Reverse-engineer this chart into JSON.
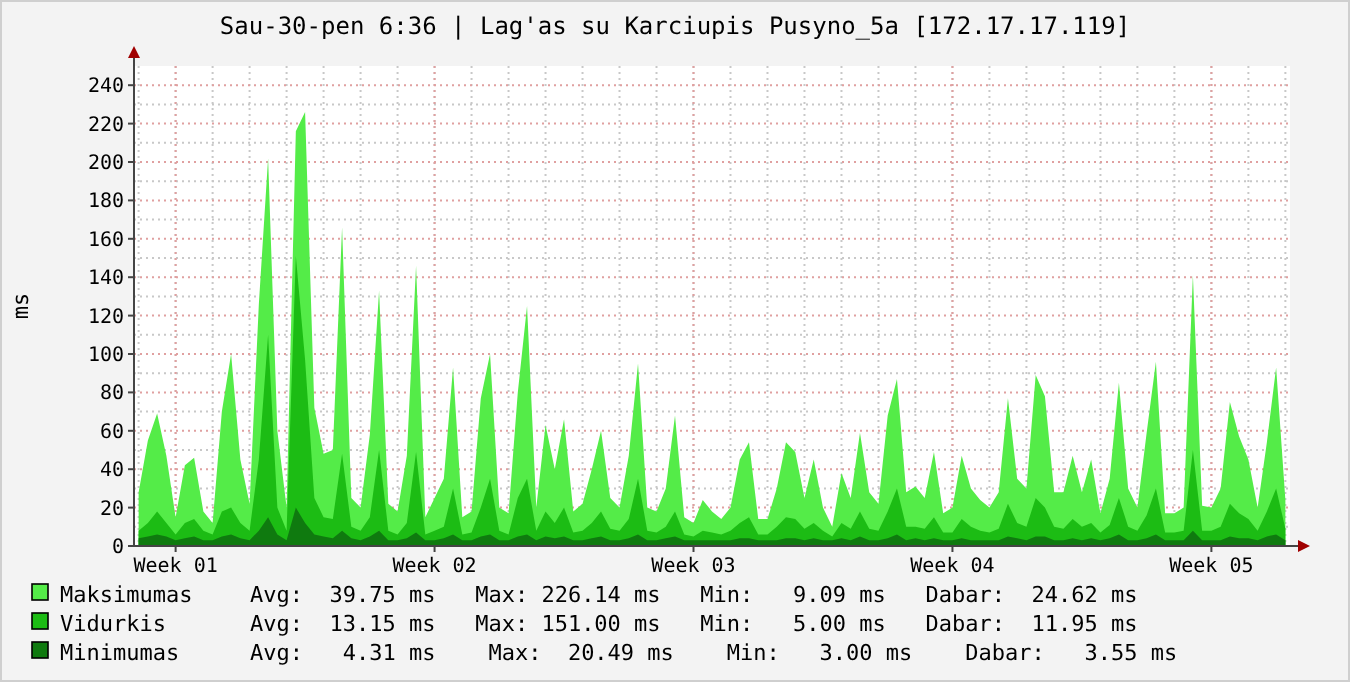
{
  "chart_data": {
    "type": "area",
    "title": "Sau-30-pen 6:36 | Lag'as su Karciupis Pusyno_5a [172.17.17.119]",
    "ylabel": "ms",
    "categories": [
      null,
      null,
      null,
      null,
      "Week 01",
      null,
      null,
      null,
      null,
      null,
      null,
      null,
      null,
      null,
      null,
      null,
      null,
      null,
      null,
      null,
      null,
      null,
      null,
      null,
      null,
      null,
      null,
      null,
      null,
      null,
      null,
      null,
      "Week 02",
      null,
      null,
      null,
      null,
      null,
      null,
      null,
      null,
      null,
      null,
      null,
      null,
      null,
      null,
      null,
      null,
      null,
      null,
      null,
      null,
      null,
      null,
      null,
      null,
      null,
      null,
      null,
      "Week 03",
      null,
      null,
      null,
      null,
      null,
      null,
      null,
      null,
      null,
      null,
      null,
      null,
      null,
      null,
      null,
      null,
      null,
      null,
      null,
      null,
      null,
      null,
      null,
      null,
      null,
      null,
      null,
      "Week 04",
      null,
      null,
      null,
      null,
      null,
      null,
      null,
      null,
      null,
      null,
      null,
      null,
      null,
      null,
      null,
      null,
      null,
      null,
      null,
      null,
      null,
      null,
      null,
      null,
      null,
      null,
      null,
      "Week 05",
      null,
      null,
      null,
      null,
      null,
      null,
      null,
      null
    ],
    "ylim": [
      0,
      250
    ],
    "yticks": [
      0,
      20,
      40,
      60,
      80,
      100,
      120,
      140,
      160,
      180,
      200,
      220,
      240
    ],
    "grid": true,
    "legend": "bottom",
    "series": [
      {
        "name": "Maksimumas",
        "color": "#54ec48",
        "values": [
          28,
          55,
          69,
          47,
          15,
          42,
          46,
          18,
          12,
          70,
          100,
          45,
          22,
          126,
          202,
          60,
          20,
          216,
          226,
          72,
          48,
          50,
          166,
          25,
          20,
          58,
          133,
          22,
          18,
          47,
          146,
          15,
          25,
          35,
          93,
          15,
          18,
          77,
          100,
          20,
          17,
          80,
          125,
          20,
          63,
          40,
          66,
          18,
          22,
          40,
          60,
          25,
          20,
          47,
          95,
          20,
          18,
          30,
          68,
          15,
          12,
          24,
          18,
          14,
          20,
          45,
          54,
          14,
          14,
          30,
          54,
          49,
          25,
          45,
          20,
          10,
          38,
          25,
          59,
          28,
          22,
          68,
          87,
          28,
          31,
          25,
          49,
          17,
          20,
          47,
          30,
          24,
          20,
          28,
          77,
          35,
          30,
          89,
          78,
          28,
          28,
          47,
          28,
          45,
          17,
          35,
          85,
          30,
          20,
          59,
          96,
          17,
          17,
          20,
          141,
          21,
          20,
          30,
          75,
          57,
          45,
          20,
          54,
          93,
          24
        ]
      },
      {
        "name": "Vidurkis",
        "color": "#1cbc14",
        "values": [
          8,
          12,
          18,
          12,
          6,
          12,
          14,
          8,
          6,
          18,
          20,
          12,
          8,
          45,
          110,
          20,
          8,
          151,
          97,
          25,
          15,
          14,
          48,
          10,
          8,
          15,
          50,
          8,
          6,
          12,
          49,
          6,
          8,
          10,
          30,
          6,
          7,
          20,
          35,
          8,
          6,
          25,
          35,
          8,
          18,
          12,
          20,
          7,
          8,
          12,
          18,
          9,
          8,
          14,
          35,
          8,
          7,
          10,
          18,
          6,
          5,
          8,
          7,
          6,
          8,
          12,
          15,
          6,
          6,
          10,
          15,
          14,
          9,
          12,
          8,
          5,
          12,
          9,
          18,
          9,
          8,
          18,
          30,
          10,
          10,
          9,
          15,
          7,
          7,
          14,
          10,
          8,
          7,
          9,
          22,
          12,
          10,
          25,
          20,
          10,
          9,
          14,
          10,
          12,
          7,
          11,
          25,
          10,
          8,
          16,
          30,
          7,
          7,
          8,
          50,
          8,
          8,
          10,
          22,
          17,
          14,
          8,
          18,
          30,
          9
        ]
      },
      {
        "name": "Minimumas",
        "color": "#0f7a0f",
        "values": [
          4,
          5,
          6,
          5,
          3,
          4,
          5,
          3,
          3,
          5,
          6,
          4,
          3,
          8,
          15,
          6,
          3,
          20,
          12,
          6,
          5,
          4,
          8,
          4,
          3,
          5,
          8,
          3,
          3,
          4,
          7,
          3,
          3,
          4,
          6,
          3,
          3,
          5,
          6,
          3,
          3,
          5,
          6,
          3,
          5,
          4,
          5,
          3,
          3,
          4,
          5,
          3,
          3,
          4,
          6,
          3,
          3,
          4,
          5,
          3,
          3,
          3,
          3,
          3,
          3,
          4,
          4,
          3,
          3,
          3,
          4,
          4,
          3,
          4,
          3,
          3,
          4,
          3,
          5,
          3,
          3,
          4,
          6,
          3,
          4,
          3,
          4,
          3,
          3,
          4,
          3,
          3,
          3,
          3,
          5,
          4,
          3,
          5,
          5,
          3,
          3,
          4,
          3,
          4,
          3,
          4,
          6,
          3,
          3,
          4,
          6,
          3,
          3,
          3,
          8,
          3,
          3,
          3,
          5,
          4,
          4,
          3,
          5,
          6,
          3
        ]
      }
    ],
    "annotations": [
      "Avg:  39.75 ms   Max: 226.14 ms   Min:   9.09 ms   Dabar:  24.62 ms",
      "Avg:  13.15 ms   Max: 151.00 ms   Min:   5.00 ms   Dabar:  11.95 ms",
      "Avg:   4.31 ms    Max:  20.49 ms    Min:   3.00 ms    Dabar:   3.55 ms"
    ]
  }
}
